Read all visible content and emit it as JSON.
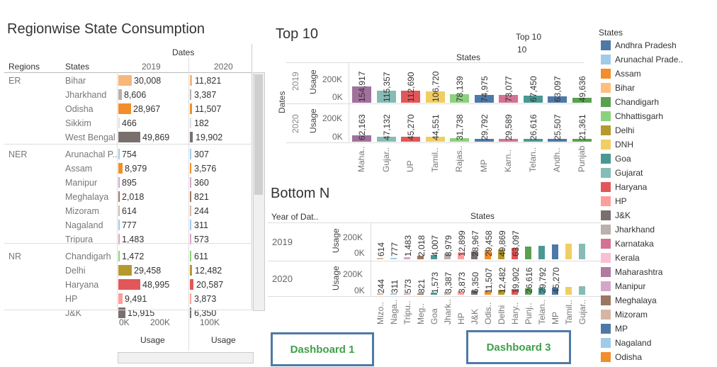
{
  "left": {
    "title": "Regionwise State Consumption",
    "dates_header": "Dates",
    "regions_header": "Regions",
    "states_header": "States",
    "year1": "2019",
    "year2": "2020",
    "axis_label_1": "Usage",
    "axis_label_2": "Usage",
    "axis_ticks_1": [
      "0K",
      "200K"
    ],
    "axis_ticks_2": [
      "100K"
    ],
    "regions": [
      "ER",
      "NER",
      "NR"
    ],
    "rows": [
      {
        "region": "ER",
        "state": "Bihar",
        "v2019": "30,008",
        "v2020": "11,821",
        "color": "#f5b77a",
        "n2019": 30008,
        "n2020": 11821
      },
      {
        "region": "",
        "state": "Jharkhand",
        "v2019": "8,606",
        "v2020": "3,387",
        "color": "#b8b0ac",
        "n2019": 8606,
        "n2020": 3387
      },
      {
        "region": "",
        "state": "Odisha",
        "v2019": "28,967",
        "v2020": "11,507",
        "color": "#f28e2b",
        "n2019": 28967,
        "n2020": 11507
      },
      {
        "region": "",
        "state": "Sikkim",
        "v2019": "466",
        "v2020": "182",
        "color": "#e0e0e0",
        "n2019": 466,
        "n2020": 182
      },
      {
        "region": "",
        "state": "West Bengal",
        "v2019": "49,869",
        "v2020": "19,902",
        "color": "#79706e",
        "n2019": 49869,
        "n2020": 19902
      },
      {
        "region": "NER",
        "state": "Arunachal P..",
        "v2019": "754",
        "v2020": "307",
        "color": "#a0cbe8",
        "n2019": 754,
        "n2020": 307
      },
      {
        "region": "",
        "state": "Assam",
        "v2019": "8,979",
        "v2020": "3,576",
        "color": "#f28e2b",
        "n2019": 8979,
        "n2020": 3576
      },
      {
        "region": "",
        "state": "Manipur",
        "v2019": "895",
        "v2020": "360",
        "color": "#d4a6c8",
        "n2019": 895,
        "n2020": 360
      },
      {
        "region": "",
        "state": "Meghalaya",
        "v2019": "2,018",
        "v2020": "821",
        "color": "#9d7660",
        "n2019": 2018,
        "n2020": 821
      },
      {
        "region": "",
        "state": "Mizoram",
        "v2019": "614",
        "v2020": "244",
        "color": "#d7b5a6",
        "n2019": 614,
        "n2020": 244
      },
      {
        "region": "",
        "state": "Nagaland",
        "v2019": "777",
        "v2020": "311",
        "color": "#a0cbe8",
        "n2019": 777,
        "n2020": 311
      },
      {
        "region": "",
        "state": "Tripura",
        "v2019": "1,483",
        "v2020": "573",
        "color": "#d4a6c8",
        "n2019": 1483,
        "n2020": 573
      },
      {
        "region": "NR",
        "state": "Chandigarh",
        "v2019": "1,472",
        "v2020": "611",
        "color": "#8cd17d",
        "n2019": 1472,
        "n2020": 611
      },
      {
        "region": "",
        "state": "Delhi",
        "v2019": "29,458",
        "v2020": "12,482",
        "color": "#b6992d",
        "n2019": 29458,
        "n2020": 12482
      },
      {
        "region": "",
        "state": "Haryana",
        "v2019": "48,995",
        "v2020": "20,587",
        "color": "#e15759",
        "n2019": 48995,
        "n2020": 20587
      },
      {
        "region": "",
        "state": "HP",
        "v2019": "9,491",
        "v2020": "3,873",
        "color": "#ff9d9a",
        "n2019": 9491,
        "n2020": 3873
      },
      {
        "region": "",
        "state": "J&K",
        "v2019": "15,915",
        "v2020": "6,350",
        "color": "#79706e",
        "n2019": 15915,
        "n2020": 6350
      }
    ]
  },
  "top10": {
    "title": "Top 10",
    "filter_label": "Top 10",
    "filter_value": "10",
    "states_header": "States",
    "dates_label": "Dates",
    "usage_label": "Usage",
    "year1": "2019",
    "year2": "2020",
    "ticks": [
      "200K",
      "0K"
    ],
    "states": [
      "Maha..",
      "Gujar..",
      "UP",
      "Tamil..",
      "Rajas..",
      "MP",
      "Karn..",
      "Telan..",
      "Andh..",
      "Punjab"
    ],
    "colors": [
      "#a0719c",
      "#86bcb6",
      "#e15759",
      "#f1ce63",
      "#8cd17d",
      "#4e79a7",
      "#d37295",
      "#499894",
      "#4e79a7",
      "#59a14f"
    ],
    "v2019": [
      "154,917",
      "115,357",
      "112,690",
      "106,720",
      "78,139",
      "74,975",
      "73,077",
      "67,450",
      "63,097",
      "49,636"
    ],
    "v2020": [
      "62,163",
      "47,132",
      "45,270",
      "44,551",
      "31,738",
      "29,792",
      "29,589",
      "26,616",
      "25,507",
      "21,361"
    ]
  },
  "bottomn": {
    "title": "Bottom N",
    "year_header": "Year of Dat..",
    "states_header": "States",
    "usage_label": "Usage",
    "year1": "2019",
    "year2": "2020",
    "ticks": [
      "200K",
      "0K"
    ],
    "states": [
      "Mizo..",
      "Naga..",
      "Tripu..",
      "Meg..",
      "Goa",
      "Jhark..",
      "HP",
      "J&K",
      "Odis..",
      "Delhi",
      "Hary..",
      "Punj..",
      "Telan..",
      "MP",
      "Tamil..",
      "Gujar.."
    ],
    "v2019": [
      "614",
      "777",
      "1,483",
      "2,018",
      "4,007",
      "8,979",
      "12,899",
      "28,967",
      "29,458",
      "49,869",
      "63,097"
    ],
    "v2020": [
      "244",
      "311",
      "573",
      "821",
      "1,573",
      "3,387",
      "3,873",
      "6,350",
      "11,507",
      "12,482",
      "19,902",
      "26,616",
      "29,792",
      "45,270"
    ]
  },
  "legend": {
    "title": "States",
    "items": [
      {
        "label": "Andhra Pradesh",
        "color": "#4e79a7"
      },
      {
        "label": "Arunachal Prade..",
        "color": "#a0cbe8"
      },
      {
        "label": "Assam",
        "color": "#f28e2b"
      },
      {
        "label": "Bihar",
        "color": "#ffbe7d"
      },
      {
        "label": "Chandigarh",
        "color": "#59a14f"
      },
      {
        "label": "Chhattisgarh",
        "color": "#8cd17d"
      },
      {
        "label": "Delhi",
        "color": "#b6992d"
      },
      {
        "label": "DNH",
        "color": "#f1ce63"
      },
      {
        "label": "Goa",
        "color": "#499894"
      },
      {
        "label": "Gujarat",
        "color": "#86bcb6"
      },
      {
        "label": "Haryana",
        "color": "#e15759"
      },
      {
        "label": "HP",
        "color": "#ff9d9a"
      },
      {
        "label": "J&K",
        "color": "#79706e"
      },
      {
        "label": "Jharkhand",
        "color": "#bab0ac"
      },
      {
        "label": "Karnataka",
        "color": "#d37295"
      },
      {
        "label": "Kerala",
        "color": "#fabfd2"
      },
      {
        "label": "Maharashtra",
        "color": "#b07aa1"
      },
      {
        "label": "Manipur",
        "color": "#d4a6c8"
      },
      {
        "label": "Meghalaya",
        "color": "#9d7660"
      },
      {
        "label": "Mizoram",
        "color": "#d7b5a6"
      },
      {
        "label": "MP",
        "color": "#4e79a7"
      },
      {
        "label": "Nagaland",
        "color": "#a0cbe8"
      },
      {
        "label": "Odisha",
        "color": "#f28e2b"
      }
    ]
  },
  "buttons": {
    "dashboard1": "Dashboard 1",
    "dashboard3": "Dashboard 3"
  }
}
